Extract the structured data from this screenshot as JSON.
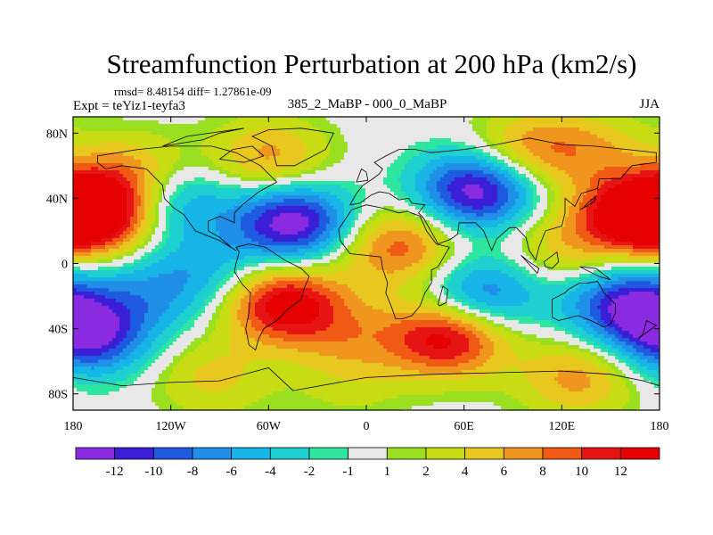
{
  "title": "Streamfunction Perturbation at 200 hPa (km2/s)",
  "stats_line": "rmsd= 8.48154 diff= 1.27861e-09",
  "left_label": "Expt = teYiz1-teyfa3",
  "center_label": "385_2_MaBP - 000_0_MaBP",
  "right_label": "JJA",
  "x_ticks": [
    "180",
    "120W",
    "60W",
    "0",
    "60E",
    "120E",
    "180"
  ],
  "x_tick_values": [
    -180,
    -120,
    -60,
    0,
    60,
    120,
    180
  ],
  "y_ticks": [
    "80N",
    "40N",
    "0",
    "40S",
    "80S"
  ],
  "y_tick_values": [
    80,
    40,
    0,
    -40,
    -80
  ],
  "map_extent": {
    "lon": [
      -180,
      180
    ],
    "lat": [
      -90,
      90
    ]
  },
  "colorbar": {
    "levels": [
      "-12",
      "-10",
      "-8",
      "-6",
      "-4",
      "-2",
      "-1",
      "1",
      "2",
      "4",
      "6",
      "8",
      "10",
      "12"
    ],
    "colors": [
      "#8a2be2",
      "#3b1fd6",
      "#1f5be0",
      "#1f8fe8",
      "#17b4e8",
      "#1fd0d0",
      "#2ee6a0",
      "#e8e8e8",
      "#9be020",
      "#c8dc14",
      "#e8c81e",
      "#f0961e",
      "#f05a14",
      "#e61414",
      "#e60000"
    ]
  },
  "field_features": [
    {
      "lon": -165,
      "lat": 30,
      "value": 12
    },
    {
      "lon": -145,
      "lat": 55,
      "value": 6
    },
    {
      "lon": -118,
      "lat": 38,
      "value": -6
    },
    {
      "lon": -45,
      "lat": 25,
      "value": -12
    },
    {
      "lon": 20,
      "lat": 10,
      "value": 8
    },
    {
      "lon": 68,
      "lat": 45,
      "value": -12
    },
    {
      "lon": 165,
      "lat": 30,
      "value": 12
    },
    {
      "lon": 100,
      "lat": 70,
      "value": 6
    },
    {
      "lon": 140,
      "lat": 70,
      "value": 4
    },
    {
      "lon": -60,
      "lat": 65,
      "value": 6
    },
    {
      "lon": -50,
      "lat": -25,
      "value": 12
    },
    {
      "lon": 50,
      "lat": -45,
      "value": 12
    },
    {
      "lon": -170,
      "lat": -45,
      "value": -10
    },
    {
      "lon": -100,
      "lat": -5,
      "value": -4
    },
    {
      "lon": -135,
      "lat": -20,
      "value": -4
    },
    {
      "lon": 70,
      "lat": -20,
      "value": -8
    },
    {
      "lon": 160,
      "lat": -25,
      "value": -10
    },
    {
      "lon": 130,
      "lat": -70,
      "value": 6
    },
    {
      "lon": -10,
      "lat": -45,
      "value": 4
    },
    {
      "lon": -10,
      "lat": -75,
      "value": 2
    },
    {
      "lon": 120,
      "lat": 10,
      "value": 4
    },
    {
      "lon": -95,
      "lat": -70,
      "value": 4
    }
  ]
}
